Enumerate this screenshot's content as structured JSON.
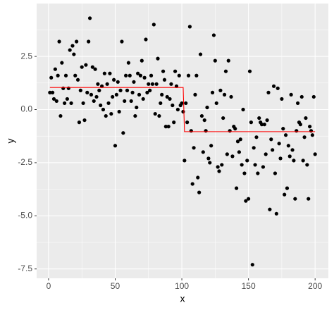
{
  "chart_data": {
    "type": "scatter",
    "xlabel": "x",
    "ylabel": "y",
    "x": [
      1,
      2,
      3,
      4,
      5,
      6,
      7,
      8,
      9,
      10,
      11,
      12,
      13,
      14,
      15,
      16,
      17,
      18,
      19,
      20,
      21,
      22,
      23,
      24,
      25,
      26,
      27,
      28,
      29,
      30,
      31,
      32,
      33,
      34,
      35,
      36,
      37,
      38,
      39,
      40,
      41,
      42,
      43,
      44,
      45,
      46,
      47,
      48,
      49,
      50,
      51,
      52,
      53,
      54,
      55,
      56,
      57,
      58,
      59,
      60,
      61,
      62,
      63,
      64,
      65,
      66,
      67,
      68,
      69,
      70,
      71,
      72,
      73,
      74,
      75,
      76,
      77,
      78,
      79,
      80,
      81,
      82,
      83,
      84,
      85,
      86,
      87,
      88,
      89,
      90,
      91,
      92,
      93,
      94,
      95,
      96,
      97,
      98,
      99,
      100,
      101,
      102,
      103,
      104,
      105,
      106,
      107,
      108,
      109,
      110,
      111,
      112,
      113,
      114,
      115,
      116,
      117,
      118,
      119,
      120,
      121,
      122,
      123,
      124,
      125,
      126,
      127,
      128,
      129,
      130,
      131,
      132,
      133,
      134,
      135,
      136,
      137,
      138,
      139,
      140,
      141,
      142,
      143,
      144,
      145,
      146,
      147,
      148,
      149,
      150,
      151,
      152,
      153,
      154,
      155,
      156,
      157,
      158,
      159,
      160,
      161,
      162,
      163,
      164,
      165,
      166,
      167,
      168,
      169,
      170,
      171,
      172,
      173,
      174,
      175,
      176,
      177,
      178,
      179,
      180,
      181,
      182,
      183,
      184,
      185,
      186,
      187,
      188,
      189,
      190,
      191,
      192,
      193,
      194,
      195,
      196,
      197,
      198,
      199,
      200
    ],
    "values": [
      0.8,
      1.5,
      0.8,
      0.5,
      1.9,
      0.4,
      1.6,
      3.2,
      -0.3,
      2.2,
      1.0,
      0.3,
      1.6,
      0.5,
      1.0,
      2.8,
      0.3,
      3.0,
      2.6,
      1.6,
      3.2,
      1.4,
      -0.6,
      0.9,
      2.0,
      0.3,
      -0.5,
      2.1,
      0.8,
      3.2,
      4.3,
      0.7,
      2.0,
      0.4,
      1.9,
      0.6,
      1.2,
      0.9,
      0.2,
      1.1,
      0.0,
      1.7,
      -0.3,
      1.2,
      0.3,
      1.7,
      -0.2,
      0.6,
      1.4,
      -1.7,
      0.7,
      1.3,
      -0.1,
      0.9,
      3.2,
      -1.1,
      0.4,
      1.6,
      0.9,
      2.2,
      1.6,
      0.4,
      0.8,
      1.3,
      -0.3,
      0.1,
      1.7,
      0.7,
      1.6,
      2.3,
      0.5,
      1.5,
      3.3,
      0.8,
      1.2,
      0.9,
      1.6,
      1.2,
      4.0,
      -0.2,
      1.2,
      2.4,
      -0.3,
      0.3,
      0.7,
      1.8,
      1.4,
      -0.8,
      0.6,
      -0.8,
      0.5,
      1.2,
      0.2,
      -0.6,
      1.8,
      1.1,
      0.0,
      1.6,
      0.2,
      0.3,
      -0.1,
      -2.4,
      0.3,
      -0.6,
      1.6,
      3.9,
      -1.0,
      -3.5,
      -1.8,
      0.7,
      1.6,
      -3.2,
      -3.9,
      2.6,
      -0.3,
      -2.0,
      -0.5,
      -1.0,
      0.1,
      -2.3,
      -2.5,
      -1.7,
      0.8,
      3.5,
      2.3,
      0.3,
      -2.7,
      -2.9,
      0.9,
      -2.6,
      -0.4,
      0.7,
      1.8,
      -2.1,
      2.3,
      -1.0,
      0.6,
      -2.2,
      -0.8,
      -0.9,
      -3.7,
      -1.5,
      -2.0,
      -1.4,
      -2.6,
      0.0,
      -3.0,
      -4.3,
      -2.4,
      -4.2,
      1.8,
      -0.6,
      -7.3,
      -1.8,
      -2.6,
      -1.3,
      -3.0,
      -0.4,
      -0.6,
      -0.7,
      -2.7,
      -0.7,
      -2.1,
      -0.5,
      0.8,
      -4.7,
      -1.4,
      -1.9,
      1.1,
      -3.0,
      -4.9,
      1.0,
      -1.6,
      -2.3,
      0.5,
      -0.9,
      -4.0,
      -1.2,
      -3.7,
      -1.7,
      -2.2,
      0.7,
      -1.9,
      -2.4,
      -4.2,
      -1.0,
      0.3,
      -0.6,
      -0.7,
      0.6,
      -2.4,
      -1.3,
      -0.4,
      -2.6,
      -4.2,
      -0.8,
      -1.0,
      -1.2,
      0.6,
      -2.1
    ],
    "color": "#000000",
    "fit_line": {
      "color": "#ff0000",
      "x": [
        1,
        101,
        102,
        200
      ],
      "values": [
        1.04,
        1.04,
        -1.04,
        -1.04
      ]
    },
    "xlim": [
      -8.95,
      209.95
    ],
    "ylim": [
      -7.94,
      4.99
    ],
    "xticks": [
      0,
      50,
      100,
      150,
      200
    ],
    "yticks": [
      2.5,
      {
        "value": 0,
        "label": "0.0"
      },
      -2.5,
      {
        "value": -5,
        "label": "-5.0"
      },
      -7.5
    ],
    "x_minor_grid": [
      25,
      75,
      125,
      175
    ],
    "y_minor_grid": [
      3.75,
      1.25,
      -1.25,
      -3.75,
      -6.25
    ],
    "grid": true
  }
}
